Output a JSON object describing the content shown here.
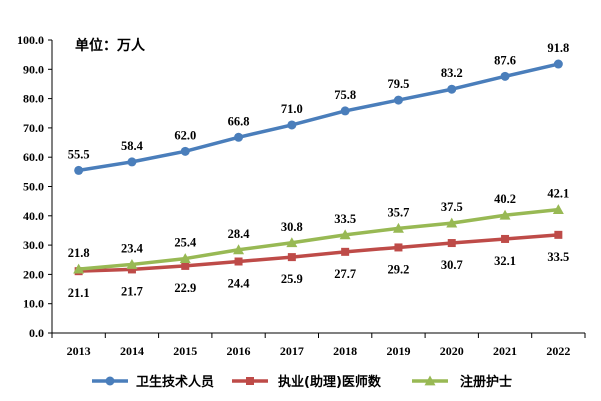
{
  "chart_data": {
    "type": "line",
    "unit_label": "单位：万人",
    "categories": [
      "2013",
      "2014",
      "2015",
      "2016",
      "2017",
      "2018",
      "2019",
      "2020",
      "2021",
      "2022"
    ],
    "ylim": [
      0,
      100
    ],
    "ytick_step": 10,
    "ytick_labels": [
      "0.0",
      "10.0",
      "20.0",
      "30.0",
      "40.0",
      "50.0",
      "60.0",
      "70.0",
      "80.0",
      "90.0",
      "100.0"
    ],
    "legend_position": "bottom",
    "grid": false,
    "series": [
      {
        "name": "卫生技术人员",
        "values": [
          55.5,
          58.4,
          62.0,
          66.8,
          71.0,
          75.8,
          79.5,
          83.2,
          87.6,
          91.8
        ],
        "labels": [
          "55.5",
          "58.4",
          "62.0",
          "66.8",
          "71.0",
          "75.8",
          "79.5",
          "83.2",
          "87.6",
          "91.8"
        ],
        "color": "#4a7ebb",
        "marker": "circle",
        "label_side": "above"
      },
      {
        "name": "执业(助理)医师数",
        "values": [
          21.1,
          21.7,
          22.9,
          24.4,
          25.9,
          27.7,
          29.2,
          30.7,
          32.1,
          33.5
        ],
        "labels": [
          "21.1",
          "21.7",
          "22.9",
          "24.4",
          "25.9",
          "27.7",
          "29.2",
          "30.7",
          "32.1",
          "33.5"
        ],
        "color": "#be4b48",
        "marker": "square",
        "label_side": "below"
      },
      {
        "name": "注册护士",
        "values": [
          21.8,
          23.4,
          25.4,
          28.4,
          30.8,
          33.5,
          35.7,
          37.5,
          40.2,
          42.1
        ],
        "labels": [
          "21.8",
          "23.4",
          "25.4",
          "28.4",
          "30.8",
          "33.5",
          "35.7",
          "37.5",
          "40.2",
          "42.1"
        ],
        "color": "#98b954",
        "marker": "triangle",
        "label_side": "above"
      }
    ]
  }
}
